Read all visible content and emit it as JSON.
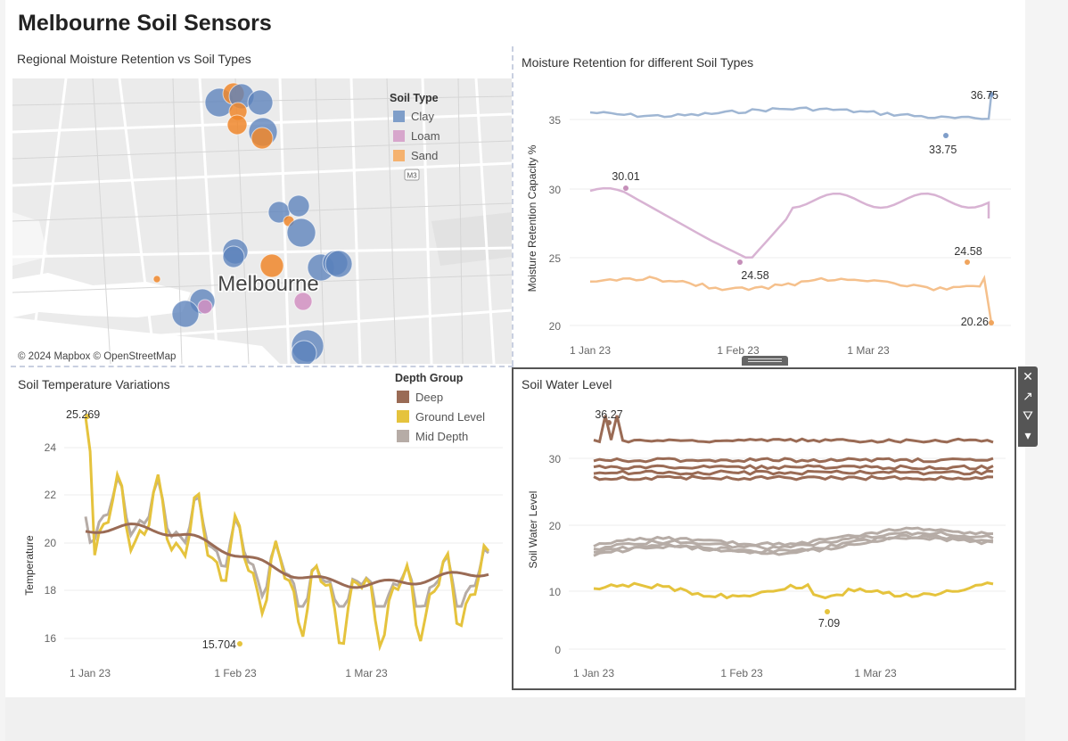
{
  "dashboard": {
    "title": "Melbourne Soil Sensors"
  },
  "map_panel": {
    "title": "Regional Moisture Retention vs Soil Types",
    "city_label": "Melbourne",
    "attribution": "© 2024 Mapbox © OpenStreetMap",
    "road_badge": "M3",
    "legend": {
      "title": "Soil Type",
      "items": [
        {
          "label": "Clay",
          "color": "#7f9ec9"
        },
        {
          "label": "Loam",
          "color": "#d7a6cc"
        },
        {
          "label": "Sand",
          "color": "#f5b26f"
        }
      ]
    },
    "colors": {
      "clay": "#5b82bb",
      "loam": "#d291c2",
      "sand": "#f0872b"
    }
  },
  "moisture_panel": {
    "title": "Moisture Retention for different Soil Types",
    "ylabel": "Moisture Retention Capacity %",
    "yticks": [
      "35",
      "30",
      "25",
      "20"
    ],
    "xticks": [
      "1 Jan 23",
      "1 Feb 23",
      "1 Mar 23"
    ],
    "annotations": {
      "clay_max": "36.75",
      "clay_min": "33.75",
      "loam_max": "30.01",
      "loam_min": "24.58",
      "sand_max": "24.58",
      "sand_last": "20.26"
    },
    "colors": {
      "clay": "#9fb6d3",
      "loam": "#d8b3d3",
      "sand": "#f5c08c"
    }
  },
  "temp_panel": {
    "title": "Soil Temperature Variations",
    "ylabel": "Temperature",
    "yticks": [
      "24",
      "22",
      "20",
      "18",
      "16"
    ],
    "xticks": [
      "1 Jan 23",
      "1 Feb 23",
      "1 Mar 23"
    ],
    "annotations": {
      "max": "25.269",
      "min": "15.704"
    },
    "legend": {
      "title": "Depth Group",
      "items": [
        {
          "label": "Deep",
          "color": "#9a6b55"
        },
        {
          "label": "Ground Level",
          "color": "#e5c33d"
        },
        {
          "label": "Mid Depth",
          "color": "#b6aca6"
        }
      ]
    }
  },
  "water_panel": {
    "title": "Soil Water Level",
    "ylabel": "Soil Water Level",
    "yticks": [
      "30",
      "20",
      "10",
      "0"
    ],
    "xticks": [
      "1 Jan 23",
      "1 Feb 23",
      "1 Mar 23"
    ],
    "annotations": {
      "max": "36.27",
      "min": "7.09"
    }
  },
  "toolbar": {
    "close": "✕",
    "popout": "↗",
    "filter": "⛛",
    "menu": "▾"
  },
  "icons": [
    "close-icon",
    "popout-icon",
    "filter-icon",
    "menu-icon"
  ]
}
